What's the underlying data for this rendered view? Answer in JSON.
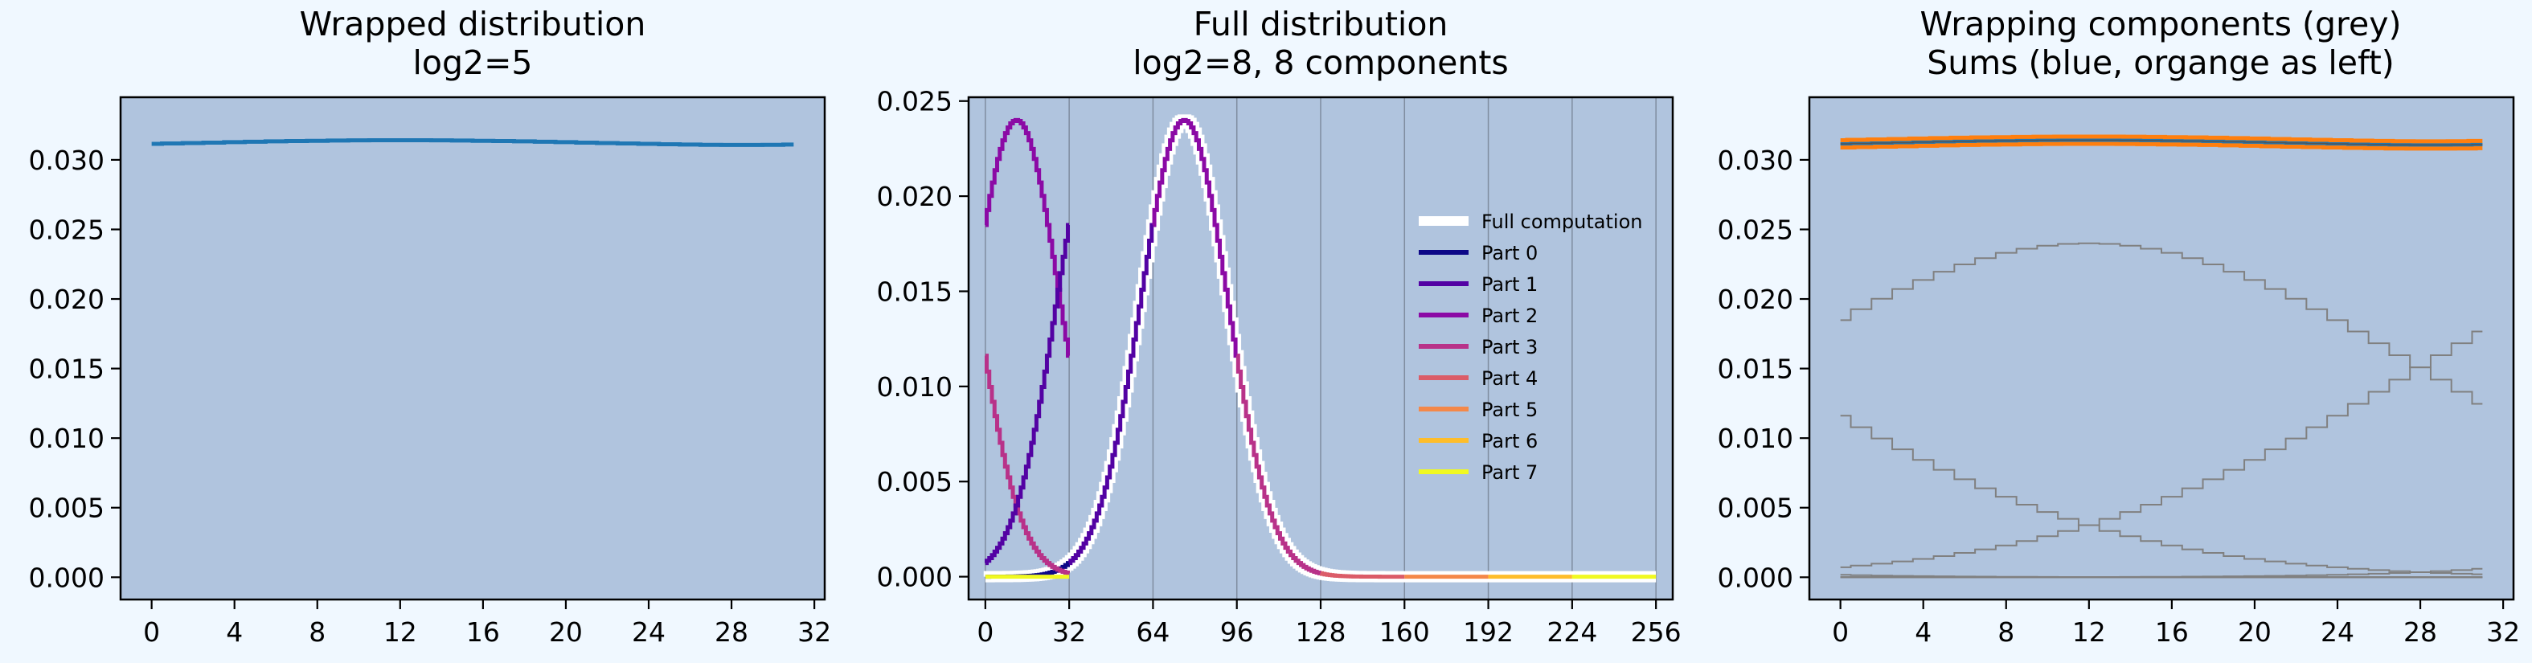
{
  "chart_data": [
    {
      "type": "line",
      "title_lines": [
        "Wrapped distribution",
        "log2=5"
      ],
      "xlabel": "",
      "ylabel": "",
      "xlim": [
        -1.5,
        32.5
      ],
      "ylim": [
        -0.0016,
        0.0345
      ],
      "xticks": [
        0,
        4,
        8,
        12,
        16,
        20,
        24,
        28,
        32
      ],
      "yticks": [
        0.0,
        0.005,
        0.01,
        0.015,
        0.02,
        0.025,
        0.03
      ],
      "ytick_labels": [
        "0.000",
        "0.005",
        "0.010",
        "0.015",
        "0.020",
        "0.025",
        "0.030"
      ],
      "grid": false,
      "series": [
        {
          "color": "#1f77b4",
          "step": true,
          "width": 5,
          "x": [
            0,
            1,
            2,
            3,
            4,
            5,
            6,
            7,
            8,
            9,
            10,
            11,
            12,
            13,
            14,
            15,
            16,
            17,
            18,
            19,
            20,
            21,
            22,
            23,
            24,
            25,
            26,
            27,
            28,
            29,
            30,
            31
          ],
          "y": [
            0.03115,
            0.03118,
            0.03121,
            0.03124,
            0.03127,
            0.0313,
            0.03133,
            0.03135,
            0.03137,
            0.03139,
            0.0314,
            0.03141,
            0.03141,
            0.03141,
            0.0314,
            0.03139,
            0.03137,
            0.03135,
            0.03133,
            0.0313,
            0.03127,
            0.03124,
            0.03121,
            0.03118,
            0.03115,
            0.03112,
            0.0311,
            0.03108,
            0.03107,
            0.03107,
            0.03108,
            0.0311
          ]
        }
      ]
    },
    {
      "type": "line",
      "title_lines": [
        "Full distribution",
        "log2=8, 8 components"
      ],
      "xlabel": "",
      "ylabel": "",
      "xlim": [
        -6.4,
        262.4
      ],
      "ylim": [
        -0.0012,
        0.0252
      ],
      "xticks": [
        0,
        32,
        64,
        96,
        128,
        160,
        192,
        224,
        256
      ],
      "yticks": [
        0.0,
        0.005,
        0.01,
        0.015,
        0.02,
        0.025
      ],
      "ytick_labels": [
        "0.000",
        "0.005",
        "0.010",
        "0.015",
        "0.020",
        "0.025"
      ],
      "vlines": [
        0,
        32,
        64,
        96,
        128,
        160,
        192,
        224,
        256
      ],
      "gaussian": {
        "mean": 76,
        "sd": 16.6,
        "peak": 0.024
      },
      "legend": {
        "position": "center-right",
        "entries": [
          {
            "label": "Full computation",
            "color": "#ffffff"
          },
          {
            "label": "Part 0",
            "color": "#0d0887"
          },
          {
            "label": "Part 1",
            "color": "#5302a3"
          },
          {
            "label": "Part 2",
            "color": "#8b0aa5"
          },
          {
            "label": "Part 3",
            "color": "#b83289"
          },
          {
            "label": "Part 4",
            "color": "#db5c68"
          },
          {
            "label": "Part 5",
            "color": "#f48849"
          },
          {
            "label": "Part 6",
            "color": "#febd2a"
          },
          {
            "label": "Part 7",
            "color": "#f0f921"
          }
        ]
      },
      "series": [
        {
          "name": "Full computation",
          "color": "#ffffff",
          "x_range": [
            0,
            256
          ],
          "width": 14
        },
        {
          "name": "Part 0",
          "color": "#0d0887",
          "x_range": [
            0,
            32
          ],
          "width": 5
        },
        {
          "name": "Part 1",
          "color": "#5302a3",
          "x_range": [
            32,
            64
          ],
          "width": 5
        },
        {
          "name": "Part 2",
          "color": "#8b0aa5",
          "x_range": [
            64,
            96
          ],
          "width": 5
        },
        {
          "name": "Part 3",
          "color": "#b83289",
          "x_range": [
            96,
            128
          ],
          "width": 5
        },
        {
          "name": "Part 4",
          "color": "#db5c68",
          "x_range": [
            128,
            160
          ],
          "width": 5
        },
        {
          "name": "Part 5",
          "color": "#f48849",
          "x_range": [
            160,
            192
          ],
          "width": 5
        },
        {
          "name": "Part 6",
          "color": "#febd2a",
          "x_range": [
            192,
            224
          ],
          "width": 5
        },
        {
          "name": "Part 7",
          "color": "#f0f921",
          "x_range": [
            224,
            256
          ],
          "width": 5
        }
      ],
      "wrapped_overlay": [
        {
          "color": "#b83289",
          "offset": 96
        },
        {
          "color": "#8b0aa5",
          "offset": 64
        },
        {
          "color": "#5302a3",
          "offset": 32
        },
        {
          "color": "#f0f921",
          "offset": 224
        }
      ]
    },
    {
      "type": "line",
      "title_lines": [
        "Wrapping components (grey)",
        "Sums (blue, organge as left)"
      ],
      "xlabel": "",
      "ylabel": "",
      "xlim": [
        -1.5,
        32.5
      ],
      "ylim": [
        -0.0016,
        0.0345
      ],
      "xticks": [
        0,
        4,
        8,
        12,
        16,
        20,
        24,
        28,
        32
      ],
      "yticks": [
        0.0,
        0.005,
        0.01,
        0.015,
        0.02,
        0.025,
        0.03
      ],
      "ytick_labels": [
        "0.000",
        "0.005",
        "0.010",
        "0.015",
        "0.020",
        "0.025",
        "0.030"
      ],
      "grey_color": "#808080",
      "grey_offsets": [
        0,
        32,
        64,
        96,
        128,
        160,
        192,
        224
      ],
      "sum_colors": {
        "orange": "#ff7f0e",
        "blue": "#1f77b4"
      }
    }
  ]
}
